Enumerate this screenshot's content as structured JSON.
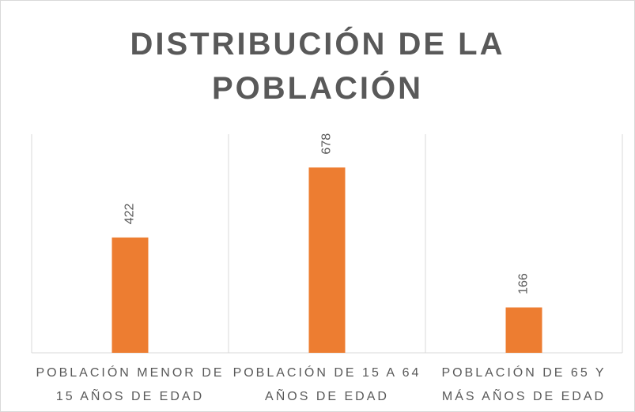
{
  "chart_data": {
    "type": "bar",
    "title": "DISTRIBUCIÓN DE LA POBLACIÓN",
    "categories": [
      "POBLACIÓN MENOR DE 15 AÑOS DE EDAD",
      "POBLACIÓN DE 15 A 64 AÑOS DE EDAD",
      "POBLACIÓN DE 65 Y MÁS AÑOS DE EDAD"
    ],
    "values": [
      422,
      678,
      166
    ],
    "color": "#ed7d31",
    "ylim": [
      0,
      800
    ]
  }
}
